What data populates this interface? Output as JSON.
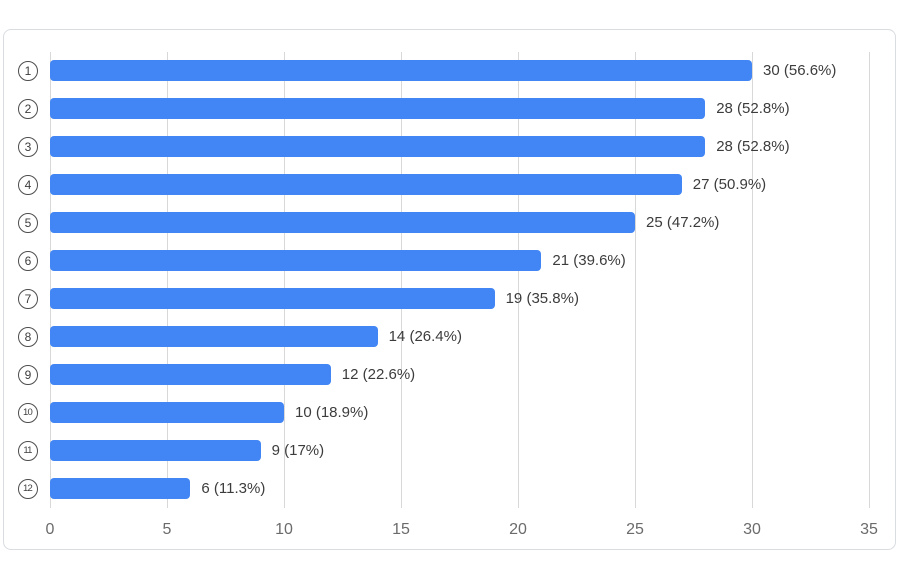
{
  "chart": {
    "bar_color": "#4285f4",
    "grid_color": "#d8d8d8",
    "card_border_color": "#d9dce0",
    "value_label_color": "#3c3c3c",
    "axis_label_color": "#6b6b6b",
    "category_circle_color": "#4d4d4d"
  },
  "chart_data": {
    "type": "bar",
    "orientation": "horizontal",
    "title": "",
    "xlabel": "",
    "ylabel": "",
    "xlim": [
      0,
      35
    ],
    "x_tick_step": 5,
    "x_ticks": [
      "0",
      "5",
      "10",
      "15",
      "20",
      "25",
      "30",
      "35"
    ],
    "grid": true,
    "legend": false,
    "categories": [
      "①",
      "②",
      "③",
      "④",
      "⑤",
      "⑥",
      "⑦",
      "⑧",
      "⑨",
      "⑩",
      "⑪",
      "⑫"
    ],
    "category_numbers": [
      "1",
      "2",
      "3",
      "4",
      "5",
      "6",
      "7",
      "8",
      "9",
      "10",
      "11",
      "12"
    ],
    "values": [
      30,
      28,
      28,
      27,
      25,
      21,
      19,
      14,
      12,
      10,
      9,
      6
    ],
    "percentages": [
      56.6,
      52.8,
      52.8,
      50.9,
      47.2,
      39.6,
      35.8,
      26.4,
      22.6,
      18.9,
      17,
      11.3
    ],
    "value_labels": [
      "30 (56.6%)",
      "28 (52.8%)",
      "28 (52.8%)",
      "27 (50.9%)",
      "25 (47.2%)",
      "21 (39.6%)",
      "19 (35.8%)",
      "14 (26.4%)",
      "12 (22.6%)",
      "10 (18.9%)",
      "9 (17%)",
      "6 (11.3%)"
    ]
  }
}
